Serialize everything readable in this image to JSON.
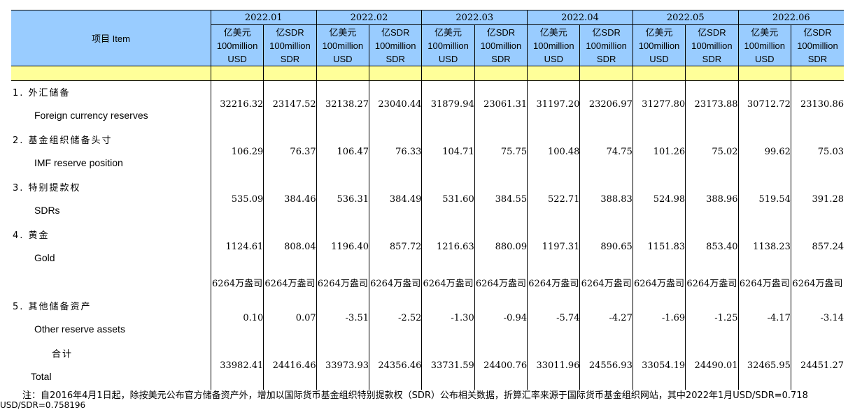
{
  "header": {
    "item_label": "项目 Item",
    "months": [
      "2022.01",
      "2022.02",
      "2022.03",
      "2022.04",
      "2022.05",
      "2022.06"
    ],
    "unit_usd": [
      "亿美元",
      "100million",
      "USD"
    ],
    "unit_sdr": [
      "亿SDR",
      "100million",
      "SDR"
    ]
  },
  "rows": [
    {
      "zh": "1. 外汇储备",
      "en": "Foreign currency reserves",
      "values": [
        "32216.32",
        "23147.52",
        "32138.27",
        "23040.44",
        "31879.94",
        "23061.31",
        "31197.20",
        "23206.97",
        "31277.80",
        "23173.88",
        "30712.72",
        "23130.86"
      ]
    },
    {
      "zh": "2. 基金组织储备头寸",
      "en": "IMF reserve position",
      "values": [
        "106.29",
        "76.37",
        "106.47",
        "76.33",
        "104.71",
        "75.75",
        "100.48",
        "74.75",
        "101.26",
        "75.02",
        "99.62",
        "75.03"
      ]
    },
    {
      "zh": "3. 特别提款权",
      "en": "SDRs",
      "values": [
        "535.09",
        "384.46",
        "536.31",
        "384.49",
        "531.60",
        "384.55",
        "522.71",
        "388.83",
        "524.98",
        "388.96",
        "519.54",
        "391.28"
      ]
    },
    {
      "zh": "4. 黄金",
      "en": "Gold",
      "values": [
        "1124.61",
        "808.04",
        "1196.40",
        "857.72",
        "1216.63",
        "880.09",
        "1197.31",
        "890.65",
        "1151.83",
        "853.40",
        "1138.23",
        "857.24"
      ]
    },
    {
      "zh": "",
      "en": "",
      "values": [
        "6264万盎司",
        "6264万盎司",
        "6264万盎司",
        "6264万盎司",
        "6264万盎司",
        "6264万盎司",
        "6264万盎司",
        "6264万盎司",
        "6264万盎司",
        "6264万盎司",
        "6264万盎司",
        "6264万盎司"
      ]
    },
    {
      "zh": "5. 其他储备资产",
      "en": "Other reserve assets",
      "values": [
        "0.10",
        "0.07",
        "-3.51",
        "-2.52",
        "-1.30",
        "-0.94",
        "-5.74",
        "-4.27",
        "-1.69",
        "-1.25",
        "-4.17",
        "-3.14"
      ]
    },
    {
      "zh": "合计",
      "en": "Total",
      "values": [
        "33982.41",
        "24416.46",
        "33973.93",
        "24356.46",
        "33731.59",
        "24400.76",
        "33011.96",
        "24556.93",
        "33054.19",
        "24490.01",
        "32465.95",
        "24451.27"
      ]
    }
  ],
  "footnote": "注：自2016年4月1日起，除按美元公布官方储备资产外，增加以国际货币基金组织特别提款权（SDR）公布相关数据，折算汇率来源于国际货币基金组织网站，其中2022年1月USD/SDR=0.718",
  "footnote_cont": "USD/SDR=0.758196"
}
